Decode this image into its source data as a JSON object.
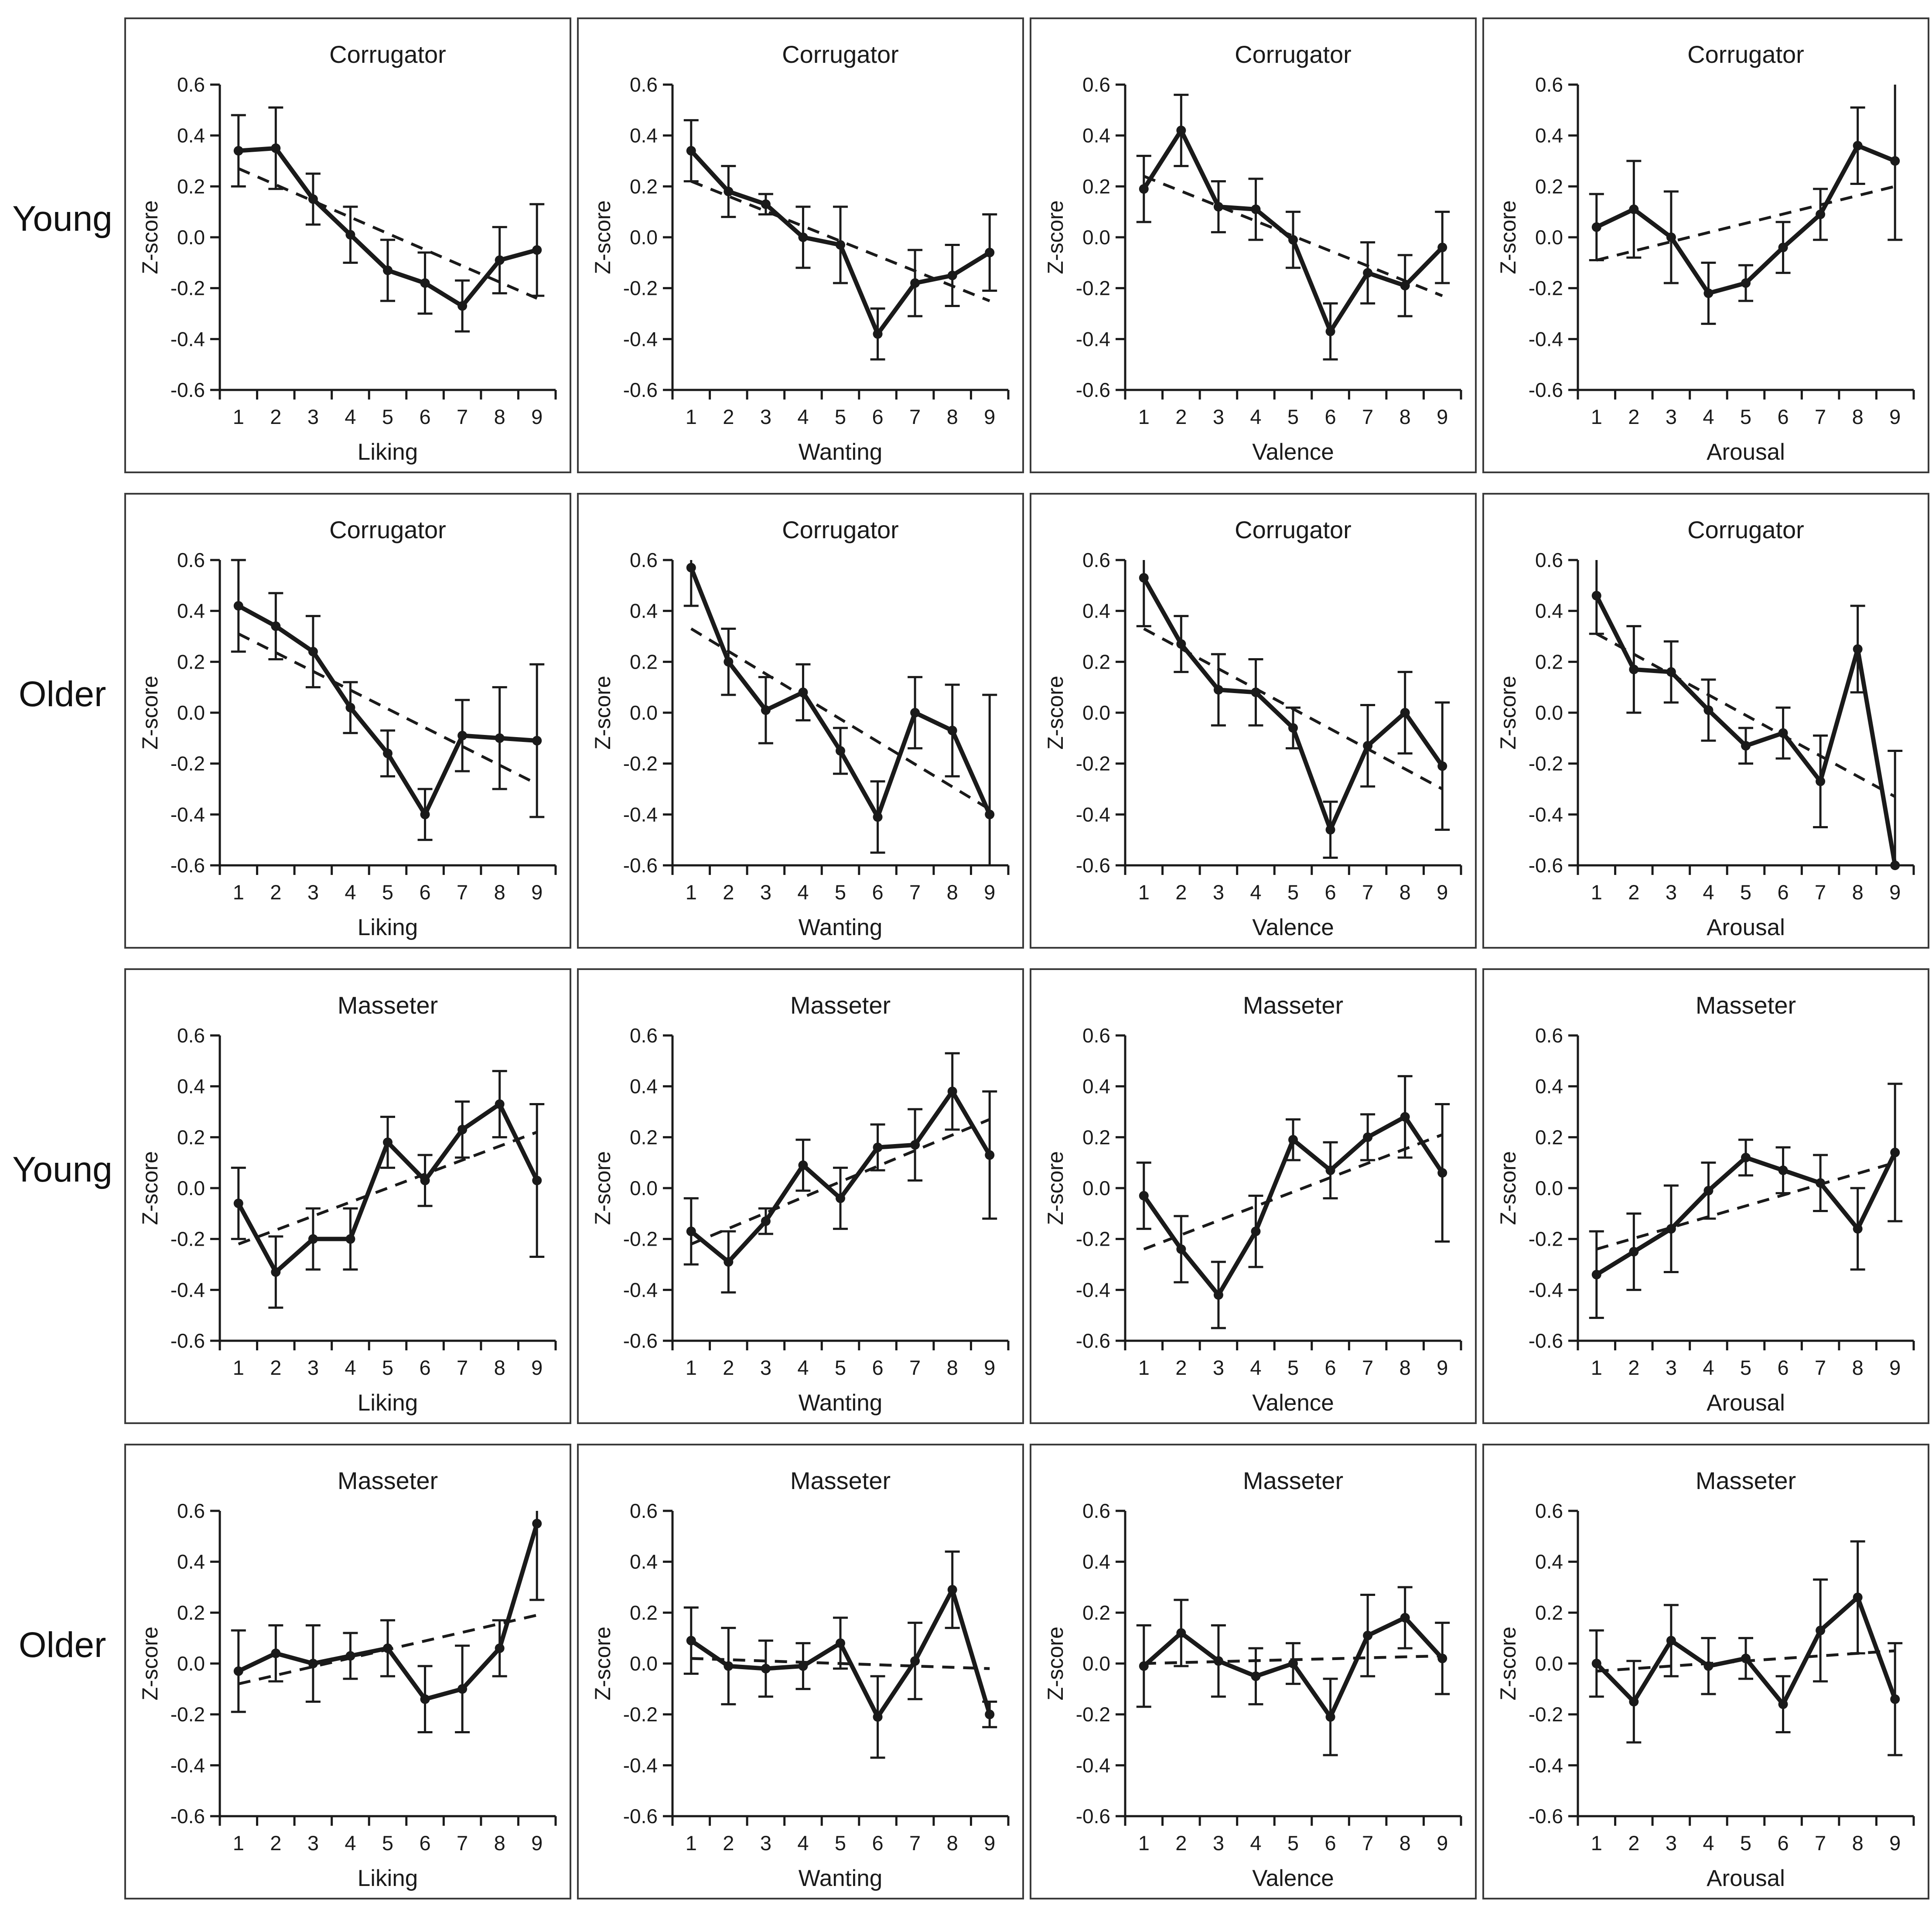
{
  "page": {
    "background": "#ffffff",
    "row_labels": [
      "Young",
      "Older",
      "Young",
      "Older"
    ]
  },
  "colors": {
    "series_line": "#1a1a1a",
    "trend_line": "#1a1a1a",
    "axis": "#1a1a1a",
    "text": "#1a1a1a",
    "panel_border": "#3b3b3b"
  },
  "axis_defaults": {
    "ylabel": "Z-score",
    "ylim": [
      -0.6,
      0.6
    ],
    "yticks": [
      0.6,
      0.4,
      0.2,
      0.0,
      -0.2,
      -0.4,
      -0.6
    ],
    "xticks": [
      "1",
      "2",
      "3",
      "4",
      "5",
      "6",
      "7",
      "8",
      "9"
    ],
    "grid": false,
    "legend": "none"
  },
  "chart_data": [
    {
      "type": "line",
      "group": "Young",
      "title": "Corrugator",
      "xlabel": "Liking",
      "ylabel": "Z-score",
      "x": [
        1,
        2,
        3,
        4,
        5,
        6,
        7,
        8,
        9
      ],
      "values": [
        0.34,
        0.35,
        0.15,
        0.01,
        -0.13,
        -0.18,
        -0.27,
        -0.09,
        -0.05
      ],
      "errors": [
        0.14,
        0.16,
        0.1,
        0.11,
        0.12,
        0.12,
        0.1,
        0.13,
        0.18
      ],
      "trend_line": {
        "x": [
          1,
          9
        ],
        "y": [
          0.27,
          -0.24
        ]
      },
      "ylim": [
        -0.6,
        0.6
      ]
    },
    {
      "type": "line",
      "group": "Young",
      "title": "Corrugator",
      "xlabel": "Wanting",
      "ylabel": "Z-score",
      "x": [
        1,
        2,
        3,
        4,
        5,
        6,
        7,
        8,
        9
      ],
      "values": [
        0.34,
        0.18,
        0.13,
        0.0,
        -0.03,
        -0.38,
        -0.18,
        -0.15,
        -0.06
      ],
      "errors": [
        0.12,
        0.1,
        0.04,
        0.12,
        0.15,
        0.1,
        0.13,
        0.12,
        0.15
      ],
      "trend_line": {
        "x": [
          1,
          9
        ],
        "y": [
          0.22,
          -0.25
        ]
      },
      "ylim": [
        -0.6,
        0.6
      ]
    },
    {
      "type": "line",
      "group": "Young",
      "title": "Corrugator",
      "xlabel": "Valence",
      "ylabel": "Z-score",
      "x": [
        1,
        2,
        3,
        4,
        5,
        6,
        7,
        8,
        9
      ],
      "values": [
        0.19,
        0.42,
        0.12,
        0.11,
        -0.01,
        -0.37,
        -0.14,
        -0.19,
        -0.04
      ],
      "errors": [
        0.13,
        0.14,
        0.1,
        0.12,
        0.11,
        0.11,
        0.12,
        0.12,
        0.14
      ],
      "trend_line": {
        "x": [
          1,
          9
        ],
        "y": [
          0.24,
          -0.23
        ]
      },
      "ylim": [
        -0.6,
        0.6
      ]
    },
    {
      "type": "line",
      "group": "Young",
      "title": "Corrugator",
      "xlabel": "Arousal",
      "ylabel": "Z-score",
      "x": [
        1,
        2,
        3,
        4,
        5,
        6,
        7,
        8,
        9
      ],
      "values": [
        0.04,
        0.11,
        0.0,
        -0.22,
        -0.18,
        -0.04,
        0.09,
        0.36,
        0.3
      ],
      "errors": [
        0.13,
        0.19,
        0.18,
        0.12,
        0.07,
        0.1,
        0.1,
        0.15,
        0.31
      ],
      "trend_line": {
        "x": [
          1,
          9
        ],
        "y": [
          -0.09,
          0.2
        ]
      },
      "ylim": [
        -0.6,
        0.6
      ]
    },
    {
      "type": "line",
      "group": "Older",
      "title": "Corrugator",
      "xlabel": "Liking",
      "ylabel": "Z-score",
      "x": [
        1,
        2,
        3,
        4,
        5,
        6,
        7,
        8,
        9
      ],
      "values": [
        0.42,
        0.34,
        0.24,
        0.02,
        -0.16,
        -0.4,
        -0.09,
        -0.1,
        -0.11
      ],
      "errors": [
        0.18,
        0.13,
        0.14,
        0.1,
        0.09,
        0.1,
        0.14,
        0.2,
        0.3
      ],
      "trend_line": {
        "x": [
          1,
          9
        ],
        "y": [
          0.31,
          -0.28
        ]
      },
      "ylim": [
        -0.6,
        0.6
      ]
    },
    {
      "type": "line",
      "group": "Older",
      "title": "Corrugator",
      "xlabel": "Wanting",
      "ylabel": "Z-score",
      "x": [
        1,
        2,
        3,
        4,
        5,
        6,
        7,
        8,
        9
      ],
      "values": [
        0.57,
        0.2,
        0.01,
        0.08,
        -0.15,
        -0.41,
        0.0,
        -0.07,
        -0.4
      ],
      "errors": [
        0.15,
        0.13,
        0.13,
        0.11,
        0.09,
        0.14,
        0.14,
        0.18,
        0.47
      ],
      "trend_line": {
        "x": [
          1,
          9
        ],
        "y": [
          0.33,
          -0.38
        ]
      },
      "ylim": [
        -0.6,
        0.6
      ]
    },
    {
      "type": "line",
      "group": "Older",
      "title": "Corrugator",
      "xlabel": "Valence",
      "ylabel": "Z-score",
      "x": [
        1,
        2,
        3,
        4,
        5,
        6,
        7,
        8,
        9
      ],
      "values": [
        0.53,
        0.27,
        0.09,
        0.08,
        -0.06,
        -0.46,
        -0.13,
        0.0,
        -0.21
      ],
      "errors": [
        0.19,
        0.11,
        0.14,
        0.13,
        0.08,
        0.11,
        0.16,
        0.16,
        0.25
      ],
      "trend_line": {
        "x": [
          1,
          9
        ],
        "y": [
          0.33,
          -0.3
        ]
      },
      "ylim": [
        -0.6,
        0.6
      ]
    },
    {
      "type": "line",
      "group": "Older",
      "title": "Corrugator",
      "xlabel": "Arousal",
      "ylabel": "Z-score",
      "x": [
        1,
        2,
        3,
        4,
        5,
        6,
        7,
        8,
        9
      ],
      "values": [
        0.46,
        0.17,
        0.16,
        0.01,
        -0.13,
        -0.08,
        -0.27,
        0.25,
        -0.6
      ],
      "errors": [
        0.15,
        0.17,
        0.12,
        0.12,
        0.07,
        0.1,
        0.18,
        0.17,
        0.45
      ],
      "trend_line": {
        "x": [
          1,
          9
        ],
        "y": [
          0.31,
          -0.33
        ]
      },
      "ylim": [
        -0.6,
        0.6
      ]
    },
    {
      "type": "line",
      "group": "Young",
      "title": "Masseter",
      "xlabel": "Liking",
      "ylabel": "Z-score",
      "x": [
        1,
        2,
        3,
        4,
        5,
        6,
        7,
        8,
        9
      ],
      "values": [
        -0.06,
        -0.33,
        -0.2,
        -0.2,
        0.18,
        0.03,
        0.23,
        0.33,
        0.03
      ],
      "errors": [
        0.14,
        0.14,
        0.12,
        0.12,
        0.1,
        0.1,
        0.11,
        0.13,
        0.3
      ],
      "trend_line": {
        "x": [
          1,
          9
        ],
        "y": [
          -0.22,
          0.22
        ]
      },
      "ylim": [
        -0.6,
        0.6
      ]
    },
    {
      "type": "line",
      "group": "Young",
      "title": "Masseter",
      "xlabel": "Wanting",
      "ylabel": "Z-score",
      "x": [
        1,
        2,
        3,
        4,
        5,
        6,
        7,
        8,
        9
      ],
      "values": [
        -0.17,
        -0.29,
        -0.13,
        0.09,
        -0.04,
        0.16,
        0.17,
        0.38,
        0.13
      ],
      "errors": [
        0.13,
        0.12,
        0.05,
        0.1,
        0.12,
        0.09,
        0.14,
        0.15,
        0.25
      ],
      "trend_line": {
        "x": [
          1,
          9
        ],
        "y": [
          -0.22,
          0.27
        ]
      },
      "ylim": [
        -0.6,
        0.6
      ]
    },
    {
      "type": "line",
      "group": "Young",
      "title": "Masseter",
      "xlabel": "Valence",
      "ylabel": "Z-score",
      "x": [
        1,
        2,
        3,
        4,
        5,
        6,
        7,
        8,
        9
      ],
      "values": [
        -0.03,
        -0.24,
        -0.42,
        -0.17,
        0.19,
        0.07,
        0.2,
        0.28,
        0.06
      ],
      "errors": [
        0.13,
        0.13,
        0.13,
        0.14,
        0.08,
        0.11,
        0.09,
        0.16,
        0.27
      ],
      "trend_line": {
        "x": [
          1,
          9
        ],
        "y": [
          -0.24,
          0.21
        ]
      },
      "ylim": [
        -0.6,
        0.6
      ]
    },
    {
      "type": "line",
      "group": "Young",
      "title": "Masseter",
      "xlabel": "Arousal",
      "ylabel": "Z-score",
      "x": [
        1,
        2,
        3,
        4,
        5,
        6,
        7,
        8,
        9
      ],
      "values": [
        -0.34,
        -0.25,
        -0.16,
        -0.01,
        0.12,
        0.07,
        0.02,
        -0.16,
        0.14
      ],
      "errors": [
        0.17,
        0.15,
        0.17,
        0.11,
        0.07,
        0.09,
        0.11,
        0.16,
        0.27
      ],
      "trend_line": {
        "x": [
          1,
          9
        ],
        "y": [
          -0.24,
          0.1
        ]
      },
      "ylim": [
        -0.6,
        0.6
      ]
    },
    {
      "type": "line",
      "group": "Older",
      "title": "Masseter",
      "xlabel": "Liking",
      "ylabel": "Z-score",
      "x": [
        1,
        2,
        3,
        4,
        5,
        6,
        7,
        8,
        9
      ],
      "values": [
        -0.03,
        0.04,
        0.0,
        0.03,
        0.06,
        -0.14,
        -0.1,
        0.06,
        0.55
      ],
      "errors": [
        0.16,
        0.11,
        0.15,
        0.09,
        0.11,
        0.13,
        0.17,
        0.11,
        0.3
      ],
      "trend_line": {
        "x": [
          1,
          9
        ],
        "y": [
          -0.08,
          0.19
        ]
      },
      "ylim": [
        -0.6,
        0.6
      ]
    },
    {
      "type": "line",
      "group": "Older",
      "title": "Masseter",
      "xlabel": "Wanting",
      "ylabel": "Z-score",
      "x": [
        1,
        2,
        3,
        4,
        5,
        6,
        7,
        8,
        9
      ],
      "values": [
        0.09,
        -0.01,
        -0.02,
        -0.01,
        0.08,
        -0.21,
        0.01,
        0.29,
        -0.2
      ],
      "errors": [
        0.13,
        0.15,
        0.11,
        0.09,
        0.1,
        0.16,
        0.15,
        0.15,
        0.05
      ],
      "trend_line": {
        "x": [
          1,
          9
        ],
        "y": [
          0.02,
          -0.02
        ]
      },
      "ylim": [
        -0.6,
        0.6
      ]
    },
    {
      "type": "line",
      "group": "Older",
      "title": "Masseter",
      "xlabel": "Valence",
      "ylabel": "Z-score",
      "x": [
        1,
        2,
        3,
        4,
        5,
        6,
        7,
        8,
        9
      ],
      "values": [
        -0.01,
        0.12,
        0.01,
        -0.05,
        0.0,
        -0.21,
        0.11,
        0.18,
        0.02
      ],
      "errors": [
        0.16,
        0.13,
        0.14,
        0.11,
        0.08,
        0.15,
        0.16,
        0.12,
        0.14
      ],
      "trend_line": {
        "x": [
          1,
          9
        ],
        "y": [
          0.0,
          0.03
        ]
      },
      "ylim": [
        -0.6,
        0.6
      ]
    },
    {
      "type": "line",
      "group": "Older",
      "title": "Masseter",
      "xlabel": "Arousal",
      "ylabel": "Z-score",
      "x": [
        1,
        2,
        3,
        4,
        5,
        6,
        7,
        8,
        9
      ],
      "values": [
        0.0,
        -0.15,
        0.09,
        -0.01,
        0.02,
        -0.16,
        0.13,
        0.26,
        -0.14
      ],
      "errors": [
        0.13,
        0.16,
        0.14,
        0.11,
        0.08,
        0.11,
        0.2,
        0.22,
        0.22
      ],
      "trend_line": {
        "x": [
          1,
          9
        ],
        "y": [
          -0.03,
          0.05
        ]
      },
      "ylim": [
        -0.6,
        0.6
      ]
    }
  ]
}
